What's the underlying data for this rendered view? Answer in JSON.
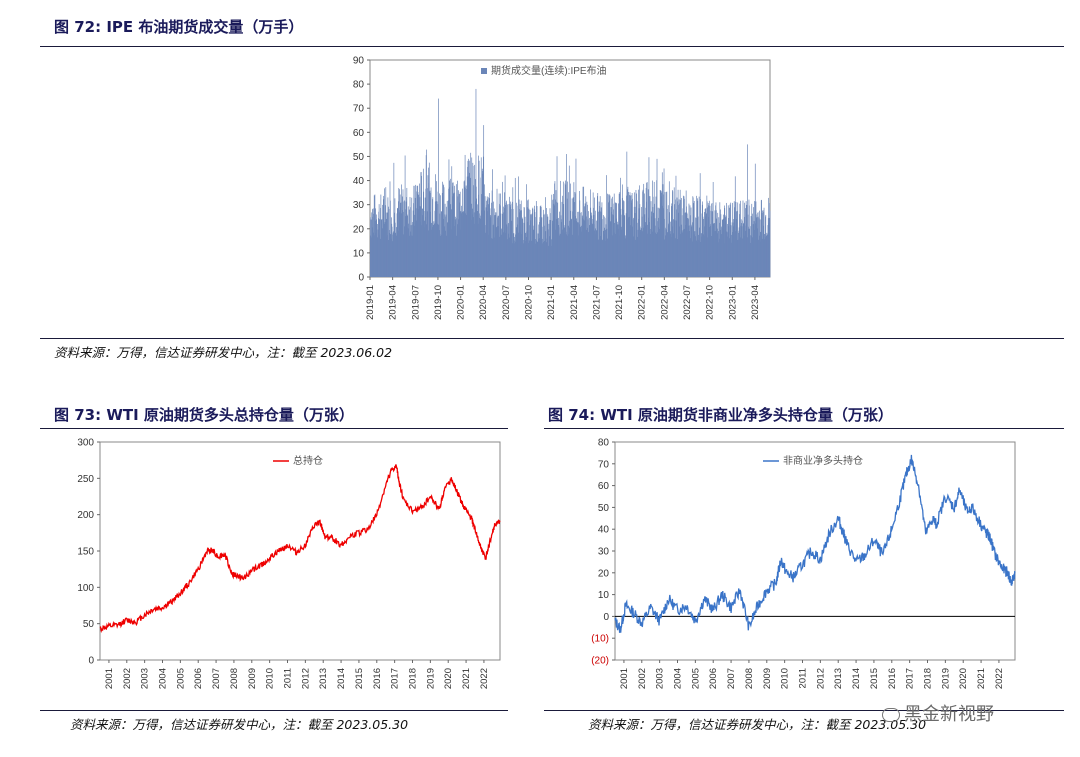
{
  "fig72": {
    "title": "图 72:  IPE 布油期货成交量（万手）",
    "source": "资料来源：万得，信达证券研发中心，注：截至 2023.06.02"
  },
  "fig73": {
    "title": "图 73:  WTI 原油期货多头总持仓量（万张）",
    "source": "资料来源：万得，信达证券研发中心，注：截至 2023.05.30"
  },
  "fig74": {
    "title": "图 74:  WTI 原油期货非商业净多头持仓量（万张）",
    "source": "资料来源：万得，信达证券研发中心，注：截至 2023.05.30"
  },
  "watermark": "黑金新视野",
  "chart_data": [
    {
      "id": "fig72",
      "type": "bar",
      "legend": "期货成交量(连续):IPE布油",
      "legend_placement": "top-center",
      "color": "#6b86b8",
      "ylim": [
        0,
        90
      ],
      "yticks": [
        0,
        10,
        20,
        30,
        40,
        50,
        60,
        70,
        80,
        90
      ],
      "xticks": [
        "2019-01",
        "2019-04",
        "2019-07",
        "2019-10",
        "2020-01",
        "2020-04",
        "2020-07",
        "2020-10",
        "2021-01",
        "2021-04",
        "2021-07",
        "2021-10",
        "2022-01",
        "2022-04",
        "2022-07",
        "2022-10",
        "2023-01",
        "2023-04"
      ],
      "x_range": [
        "2019-01",
        "2023-06"
      ],
      "grid": false,
      "baseline_by_quarter": [
        27,
        30,
        35,
        31,
        40,
        28,
        25,
        23,
        31,
        29,
        27,
        28,
        31,
        28,
        26,
        24,
        25,
        26
      ],
      "spikes": [
        {
          "x": "2019-10",
          "value": 74
        },
        {
          "x": "2020-03",
          "value": 78
        },
        {
          "x": "2020-04",
          "value": 63
        },
        {
          "x": "2020-02",
          "value": 49
        },
        {
          "x": "2021-03",
          "value": 51
        },
        {
          "x": "2021-11",
          "value": 52
        },
        {
          "x": "2022-03",
          "value": 49
        },
        {
          "x": "2023-03",
          "value": 55
        },
        {
          "x": "2023-04",
          "value": 47
        }
      ]
    },
    {
      "id": "fig73",
      "type": "line",
      "legend": "总持仓",
      "legend_placement": "top-center",
      "color": "#ee0000",
      "ylim": [
        0,
        300
      ],
      "yticks": [
        0,
        50,
        100,
        150,
        200,
        250,
        300
      ],
      "xticks": [
        "2001",
        "2002",
        "2003",
        "2004",
        "2005",
        "2006",
        "2007",
        "2008",
        "2009",
        "2010",
        "2011",
        "2012",
        "2013",
        "2014",
        "2015",
        "2016",
        "2017",
        "2018",
        "2019",
        "2020",
        "2021",
        "2022"
      ],
      "x_range": [
        2001,
        2023.4
      ],
      "grid": false,
      "points": [
        [
          2001.0,
          43
        ],
        [
          2001.5,
          46
        ],
        [
          2002.0,
          48
        ],
        [
          2002.5,
          55
        ],
        [
          2003.0,
          52
        ],
        [
          2003.5,
          62
        ],
        [
          2004.0,
          70
        ],
        [
          2004.5,
          72
        ],
        [
          2005.0,
          80
        ],
        [
          2005.5,
          92
        ],
        [
          2006.0,
          106
        ],
        [
          2006.5,
          125
        ],
        [
          2007.0,
          150
        ],
        [
          2007.3,
          152
        ],
        [
          2007.6,
          142
        ],
        [
          2008.0,
          145
        ],
        [
          2008.4,
          118
        ],
        [
          2008.8,
          115
        ],
        [
          2009.0,
          112
        ],
        [
          2009.5,
          123
        ],
        [
          2010.0,
          130
        ],
        [
          2010.5,
          140
        ],
        [
          2011.0,
          150
        ],
        [
          2011.5,
          158
        ],
        [
          2012.0,
          148
        ],
        [
          2012.5,
          158
        ],
        [
          2013.0,
          185
        ],
        [
          2013.3,
          190
        ],
        [
          2013.6,
          170
        ],
        [
          2014.0,
          168
        ],
        [
          2014.5,
          158
        ],
        [
          2015.0,
          170
        ],
        [
          2015.5,
          175
        ],
        [
          2016.0,
          180
        ],
        [
          2016.5,
          200
        ],
        [
          2017.0,
          240
        ],
        [
          2017.3,
          260
        ],
        [
          2017.6,
          266
        ],
        [
          2017.8,
          240
        ],
        [
          2018.0,
          220
        ],
        [
          2018.5,
          205
        ],
        [
          2019.0,
          210
        ],
        [
          2019.5,
          225
        ],
        [
          2020.0,
          208
        ],
        [
          2020.3,
          235
        ],
        [
          2020.7,
          250
        ],
        [
          2021.0,
          230
        ],
        [
          2021.4,
          210
        ],
        [
          2021.8,
          195
        ],
        [
          2022.0,
          180
        ],
        [
          2022.3,
          155
        ],
        [
          2022.6,
          140
        ],
        [
          2022.9,
          168
        ],
        [
          2023.1,
          185
        ],
        [
          2023.4,
          190
        ]
      ]
    },
    {
      "id": "fig74",
      "type": "line",
      "legend": "非商业净多头持仓",
      "legend_placement": "top-center",
      "color": "#3a74c8",
      "ylim": [
        -20,
        80
      ],
      "yticks": [
        -20,
        -10,
        0,
        10,
        20,
        30,
        40,
        50,
        60,
        70,
        80
      ],
      "ytick_labels": [
        "(20)",
        "(10)",
        "0",
        "10",
        "20",
        "30",
        "40",
        "50",
        "60",
        "70",
        "80"
      ],
      "negative_label_color": "#cc0000",
      "xticks": [
        "2001",
        "2002",
        "2003",
        "2004",
        "2005",
        "2006",
        "2007",
        "2008",
        "2009",
        "2010",
        "2011",
        "2012",
        "2013",
        "2014",
        "2015",
        "2016",
        "2017",
        "2018",
        "2019",
        "2020",
        "2021",
        "2022"
      ],
      "x_range": [
        2001,
        2023.4
      ],
      "grid": false,
      "points": [
        [
          2001.0,
          -2
        ],
        [
          2001.3,
          -6
        ],
        [
          2001.6,
          5
        ],
        [
          2002.0,
          2
        ],
        [
          2002.5,
          -3
        ],
        [
          2003.0,
          4
        ],
        [
          2003.5,
          -2
        ],
        [
          2004.0,
          8
        ],
        [
          2004.5,
          3
        ],
        [
          2005.0,
          5
        ],
        [
          2005.5,
          -2
        ],
        [
          2006.0,
          8
        ],
        [
          2006.5,
          3
        ],
        [
          2007.0,
          10
        ],
        [
          2007.5,
          4
        ],
        [
          2008.0,
          12
        ],
        [
          2008.5,
          -5
        ],
        [
          2009.0,
          5
        ],
        [
          2009.5,
          12
        ],
        [
          2010.0,
          15
        ],
        [
          2010.3,
          26
        ],
        [
          2010.6,
          20
        ],
        [
          2011.0,
          18
        ],
        [
          2011.5,
          24
        ],
        [
          2012.0,
          30
        ],
        [
          2012.5,
          26
        ],
        [
          2013.0,
          38
        ],
        [
          2013.5,
          45
        ],
        [
          2013.8,
          38
        ],
        [
          2014.0,
          33
        ],
        [
          2014.5,
          25
        ],
        [
          2015.0,
          28
        ],
        [
          2015.5,
          35
        ],
        [
          2016.0,
          28
        ],
        [
          2016.5,
          40
        ],
        [
          2017.0,
          55
        ],
        [
          2017.3,
          65
        ],
        [
          2017.6,
          72
        ],
        [
          2018.0,
          60
        ],
        [
          2018.4,
          38
        ],
        [
          2018.8,
          45
        ],
        [
          2019.0,
          42
        ],
        [
          2019.5,
          55
        ],
        [
          2020.0,
          50
        ],
        [
          2020.3,
          58
        ],
        [
          2020.7,
          48
        ],
        [
          2021.0,
          50
        ],
        [
          2021.5,
          42
        ],
        [
          2021.8,
          38
        ],
        [
          2022.0,
          36
        ],
        [
          2022.3,
          28
        ],
        [
          2022.7,
          22
        ],
        [
          2023.0,
          20
        ],
        [
          2023.2,
          15
        ],
        [
          2023.4,
          20
        ]
      ]
    }
  ]
}
